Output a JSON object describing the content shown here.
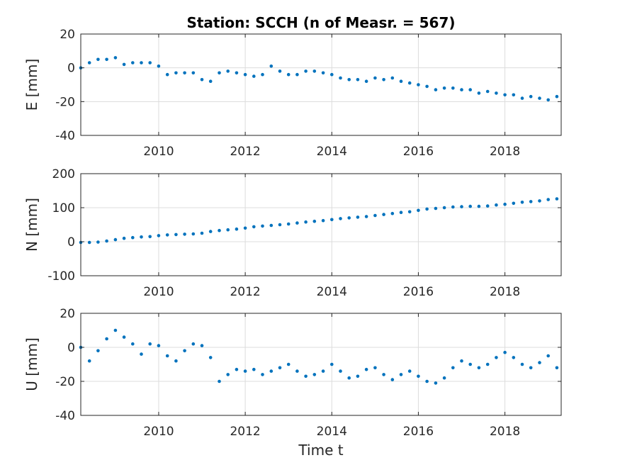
{
  "chart_data": {
    "type": "scatter",
    "title": "Station: SCCH (n of Measr. = 567)",
    "xlabel": "Time t",
    "xlim": [
      2008.2,
      2019.3
    ],
    "xticks": [
      2010,
      2012,
      2014,
      2016,
      2018
    ],
    "marker_color": "#0072bd",
    "grid": true,
    "panels": [
      {
        "name": "E",
        "ylabel": "E [mm]",
        "ylim": [
          -40,
          20
        ],
        "yticks": [
          20,
          0,
          -20,
          -40
        ],
        "x": [
          2008.2,
          2008.4,
          2008.6,
          2008.8,
          2009.0,
          2009.2,
          2009.4,
          2009.6,
          2009.8,
          2010.0,
          2010.2,
          2010.4,
          2010.6,
          2010.8,
          2011.0,
          2011.2,
          2011.4,
          2011.6,
          2011.8,
          2012.0,
          2012.2,
          2012.4,
          2012.6,
          2012.8,
          2013.0,
          2013.2,
          2013.4,
          2013.6,
          2013.8,
          2014.0,
          2014.2,
          2014.4,
          2014.6,
          2014.8,
          2015.0,
          2015.2,
          2015.4,
          2015.6,
          2015.8,
          2016.0,
          2016.2,
          2016.4,
          2016.6,
          2016.8,
          2017.0,
          2017.2,
          2017.4,
          2017.6,
          2017.8,
          2018.0,
          2018.2,
          2018.4,
          2018.6,
          2018.8,
          2019.0,
          2019.2
        ],
        "y": [
          0,
          3,
          5,
          5,
          6,
          2,
          3,
          3,
          3,
          1,
          -4,
          -3,
          -3,
          -3,
          -7,
          -8,
          -3,
          -2,
          -3,
          -4,
          -5,
          -4,
          1,
          -2,
          -4,
          -4,
          -2,
          -2,
          -3,
          -4,
          -6,
          -7,
          -7,
          -8,
          -6,
          -7,
          -6,
          -8,
          -9,
          -10,
          -11,
          -13,
          -12,
          -12,
          -13,
          -13,
          -15,
          -14,
          -15,
          -16,
          -16,
          -18,
          -17,
          -18,
          -19,
          -17
        ]
      },
      {
        "name": "N",
        "ylabel": "N [mm]",
        "ylim": [
          -100,
          200
        ],
        "yticks": [
          200,
          100,
          0,
          -100
        ],
        "x": [
          2008.2,
          2008.4,
          2008.6,
          2008.8,
          2009.0,
          2009.2,
          2009.4,
          2009.6,
          2009.8,
          2010.0,
          2010.2,
          2010.4,
          2010.6,
          2010.8,
          2011.0,
          2011.2,
          2011.4,
          2011.6,
          2011.8,
          2012.0,
          2012.2,
          2012.4,
          2012.6,
          2012.8,
          2013.0,
          2013.2,
          2013.4,
          2013.6,
          2013.8,
          2014.0,
          2014.2,
          2014.4,
          2014.6,
          2014.8,
          2015.0,
          2015.2,
          2015.4,
          2015.6,
          2015.8,
          2016.0,
          2016.2,
          2016.4,
          2016.6,
          2016.8,
          2017.0,
          2017.2,
          2017.4,
          2017.6,
          2017.8,
          2018.0,
          2018.2,
          2018.4,
          2018.6,
          2018.8,
          2019.0,
          2019.2
        ],
        "y": [
          -2,
          -2,
          -1,
          2,
          6,
          10,
          12,
          14,
          15,
          18,
          20,
          21,
          22,
          23,
          25,
          30,
          33,
          35,
          37,
          40,
          44,
          46,
          48,
          50,
          52,
          55,
          58,
          60,
          62,
          65,
          68,
          70,
          72,
          74,
          77,
          80,
          83,
          86,
          88,
          92,
          96,
          98,
          100,
          102,
          103,
          104,
          104,
          105,
          108,
          110,
          113,
          116,
          118,
          120,
          124,
          126
        ]
      },
      {
        "name": "U",
        "ylabel": "U [mm]",
        "ylim": [
          -40,
          20
        ],
        "yticks": [
          20,
          0,
          -20,
          -40
        ],
        "x": [
          2008.2,
          2008.4,
          2008.6,
          2008.8,
          2009.0,
          2009.2,
          2009.4,
          2009.6,
          2009.8,
          2010.0,
          2010.2,
          2010.4,
          2010.6,
          2010.8,
          2011.0,
          2011.2,
          2011.4,
          2011.6,
          2011.8,
          2012.0,
          2012.2,
          2012.4,
          2012.6,
          2012.8,
          2013.0,
          2013.2,
          2013.4,
          2013.6,
          2013.8,
          2014.0,
          2014.2,
          2014.4,
          2014.6,
          2014.8,
          2015.0,
          2015.2,
          2015.4,
          2015.6,
          2015.8,
          2016.0,
          2016.2,
          2016.4,
          2016.6,
          2016.8,
          2017.0,
          2017.2,
          2017.4,
          2017.6,
          2017.8,
          2018.0,
          2018.2,
          2018.4,
          2018.6,
          2018.8,
          2019.0,
          2019.2
        ],
        "y": [
          0,
          -8,
          -2,
          5,
          10,
          6,
          2,
          -4,
          2,
          1,
          -5,
          -8,
          -2,
          2,
          1,
          -6,
          -20,
          -16,
          -13,
          -14,
          -13,
          -16,
          -14,
          -12,
          -10,
          -14,
          -17,
          -16,
          -14,
          -10,
          -14,
          -18,
          -17,
          -13,
          -12,
          -16,
          -19,
          -16,
          -14,
          -17,
          -20,
          -21,
          -18,
          -12,
          -8,
          -10,
          -12,
          -10,
          -6,
          -3,
          -6,
          -10,
          -12,
          -9,
          -5,
          -12
        ]
      }
    ]
  }
}
